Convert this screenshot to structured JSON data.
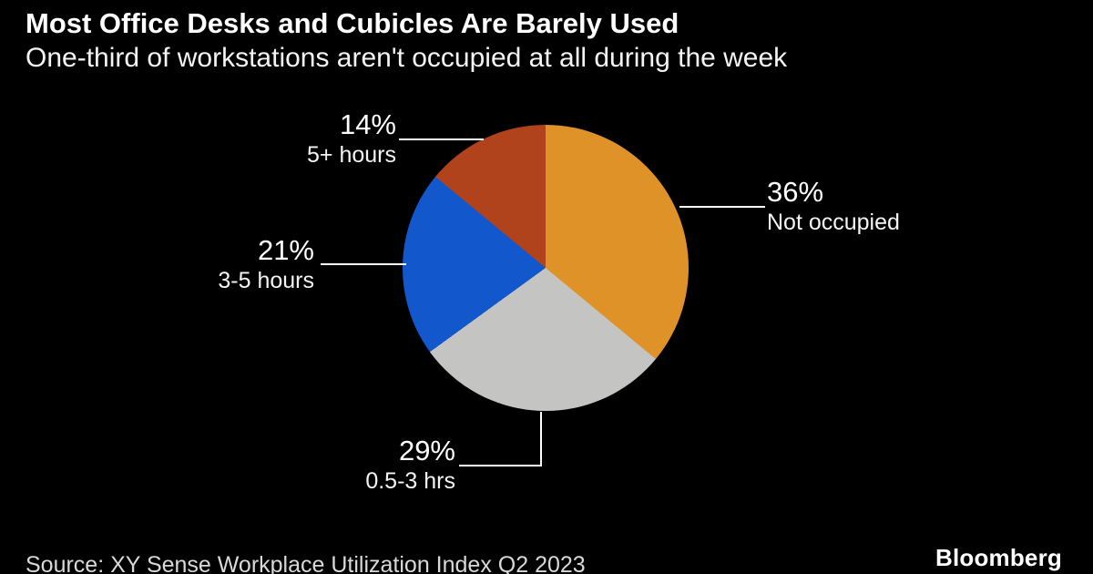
{
  "header": {
    "title": "Most Office Desks and Cubicles Are Barely Used",
    "subtitle": "One-third of workstations aren't occupied at all during the week"
  },
  "footer": {
    "source": "Source: XY Sense Workplace Utilization Index Q2 2023",
    "brand": "Bloomberg"
  },
  "colors": {
    "background": "#000000",
    "text": "#ffffff",
    "callout_line": "#ffffff"
  },
  "chart_data": {
    "type": "pie",
    "title": "Most Office Desks and Cubicles Are Barely Used",
    "subtitle": "One-third of workstations aren't occupied at all during the week",
    "unit": "%",
    "start_angle_deg": 0,
    "direction": "clockwise",
    "legend_position": "callout-labels",
    "slices": [
      {
        "label": "Not occupied",
        "pct_label": "36%",
        "value": 36,
        "color": "#DE9227"
      },
      {
        "label": "0.5-3 hrs",
        "pct_label": "29%",
        "value": 29,
        "color": "#C4C4C2"
      },
      {
        "label": "3-5 hours",
        "pct_label": "21%",
        "value": 21,
        "color": "#1257CB"
      },
      {
        "label": "5+ hours",
        "pct_label": "14%",
        "value": 14,
        "color": "#B0431C"
      }
    ]
  }
}
